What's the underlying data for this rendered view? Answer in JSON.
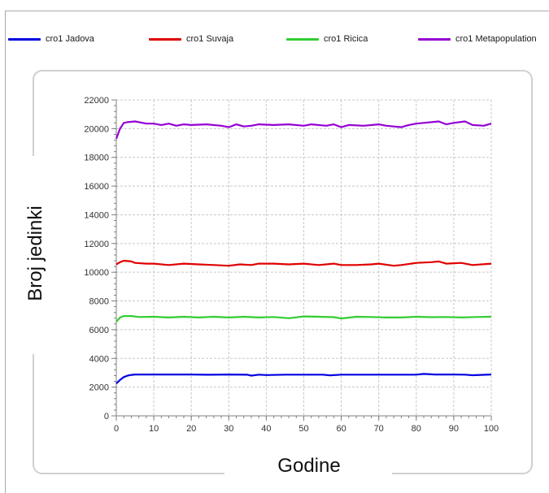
{
  "colors": {
    "jadova": "#0000e0",
    "suvaja": "#e00000",
    "ricica": "#32cd32",
    "metapopulation": "#9400d3",
    "grid": "#c8c8c8",
    "axis": "#808080"
  },
  "legend": [
    {
      "label": "cro1 Jadova",
      "color": "#0000e0"
    },
    {
      "label": "cro1 Suvaja",
      "color": "#e00000"
    },
    {
      "label": "cro1 Ricica",
      "color": "#32cd32"
    },
    {
      "label": "cro1 Metapopulation",
      "color": "#9400d3"
    }
  ],
  "chart_data": {
    "type": "line",
    "xlabel": "Godine",
    "ylabel": "Broj jedinki",
    "xlim": [
      0,
      100
    ],
    "ylim": [
      0,
      22000
    ],
    "xticks": [
      0,
      10,
      20,
      30,
      40,
      50,
      60,
      70,
      80,
      90,
      100
    ],
    "yticks": [
      0,
      2000,
      4000,
      6000,
      8000,
      10000,
      12000,
      14000,
      16000,
      18000,
      20000,
      22000
    ],
    "grid": true,
    "legend_position": "top",
    "series": [
      {
        "name": "cro1 Jadova",
        "color": "#0000e0",
        "x": [
          0,
          1,
          2,
          3,
          4,
          5,
          10,
          15,
          20,
          25,
          30,
          35,
          36,
          38,
          40,
          45,
          50,
          55,
          57,
          60,
          65,
          70,
          75,
          80,
          82,
          85,
          90,
          93,
          95,
          100
        ],
        "y": [
          2250,
          2500,
          2700,
          2800,
          2850,
          2880,
          2880,
          2880,
          2880,
          2860,
          2880,
          2860,
          2800,
          2870,
          2840,
          2870,
          2870,
          2870,
          2820,
          2870,
          2870,
          2870,
          2870,
          2870,
          2920,
          2880,
          2880,
          2870,
          2830,
          2880
        ]
      },
      {
        "name": "cro1 Suvaja",
        "color": "#e00000",
        "x": [
          0,
          1,
          2,
          4,
          5,
          8,
          10,
          14,
          18,
          22,
          26,
          30,
          33,
          36,
          38,
          42,
          46,
          50,
          54,
          58,
          60,
          64,
          68,
          70,
          74,
          76,
          80,
          84,
          86,
          88,
          92,
          95,
          100
        ],
        "y": [
          10550,
          10700,
          10800,
          10750,
          10650,
          10600,
          10600,
          10500,
          10600,
          10550,
          10500,
          10450,
          10550,
          10500,
          10600,
          10600,
          10550,
          10600,
          10500,
          10600,
          10500,
          10500,
          10550,
          10600,
          10450,
          10500,
          10650,
          10700,
          10750,
          10600,
          10650,
          10500,
          10600
        ]
      },
      {
        "name": "cro1 Ricica",
        "color": "#32cd32",
        "x": [
          0,
          1,
          2,
          4,
          6,
          10,
          14,
          18,
          22,
          26,
          30,
          34,
          38,
          42,
          46,
          50,
          54,
          58,
          60,
          64,
          68,
          72,
          76,
          80,
          84,
          88,
          92,
          96,
          100
        ],
        "y": [
          6550,
          6850,
          6950,
          6950,
          6880,
          6900,
          6850,
          6900,
          6850,
          6900,
          6850,
          6900,
          6850,
          6880,
          6800,
          6920,
          6900,
          6870,
          6780,
          6900,
          6880,
          6850,
          6850,
          6900,
          6870,
          6880,
          6850,
          6880,
          6900
        ]
      },
      {
        "name": "cro1 Metapopulation",
        "color": "#9400d3",
        "x": [
          0,
          1,
          2,
          3,
          5,
          8,
          10,
          12,
          14,
          16,
          18,
          20,
          24,
          28,
          30,
          32,
          34,
          36,
          38,
          42,
          46,
          50,
          52,
          56,
          58,
          60,
          62,
          66,
          70,
          72,
          76,
          78,
          80,
          82,
          86,
          88,
          90,
          93,
          95,
          98,
          100
        ],
        "y": [
          19300,
          20000,
          20400,
          20450,
          20500,
          20350,
          20350,
          20250,
          20350,
          20200,
          20300,
          20250,
          20300,
          20200,
          20100,
          20300,
          20150,
          20200,
          20300,
          20250,
          20300,
          20200,
          20300,
          20200,
          20300,
          20100,
          20250,
          20200,
          20300,
          20200,
          20100,
          20250,
          20350,
          20400,
          20500,
          20300,
          20400,
          20500,
          20250,
          20200,
          20350
        ]
      }
    ]
  }
}
